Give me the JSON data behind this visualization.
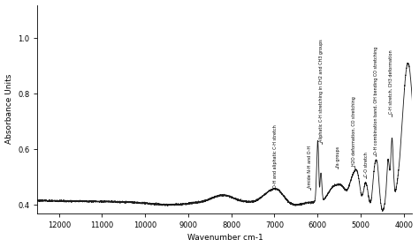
{
  "xlabel": "Wavenumber cm-1",
  "ylabel": "Absorbance Units",
  "xlim": [
    12500,
    3800
  ],
  "ylim": [
    0.37,
    1.12
  ],
  "yticks": [
    0.4,
    0.6,
    0.8,
    1.0
  ],
  "xticks": [
    12000,
    11000,
    10000,
    9000,
    8000,
    7000,
    6000,
    5000,
    4000
  ],
  "background_color": "#ffffff",
  "line_color": "#1a1a1a",
  "annotations": [
    {
      "text": "O-H and aliphatic C-H stretch",
      "x": 6980,
      "ya": 0.455,
      "yt": 0.462
    },
    {
      "text": "Amide N-H and O-H",
      "x": 6175,
      "ya": 0.455,
      "yt": 0.462
    },
    {
      "text": "Aliphatic C-H stretching in CH2 and CH3 groups",
      "x": 5910,
      "ya": 0.62,
      "yt": 0.627
    },
    {
      "text": "fa groups",
      "x": 5530,
      "ya": 0.53,
      "yt": 0.537
    },
    {
      "text": "H2O deformation, CO stretching",
      "x": 5150,
      "ya": 0.535,
      "yt": 0.542
    },
    {
      "text": "C-O stretch",
      "x": 4870,
      "ya": 0.495,
      "yt": 0.502
    },
    {
      "text": "O-H combination band, OH bending CO stretching",
      "x": 4640,
      "ya": 0.575,
      "yt": 0.582
    },
    {
      "text": "C-H stretch, CH3 deformation",
      "x": 4290,
      "ya": 0.72,
      "yt": 0.727
    }
  ]
}
